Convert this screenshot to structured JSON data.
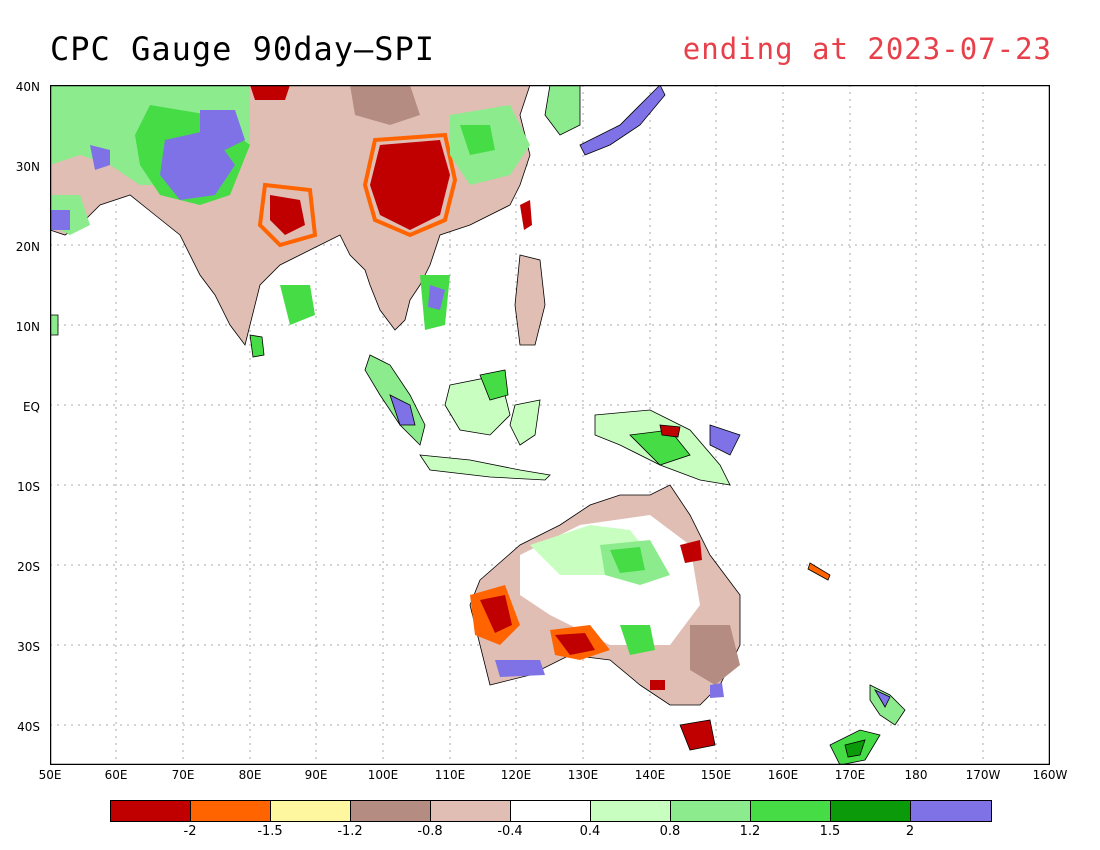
{
  "title": "CPC Gauge 90day—SPI",
  "subtitle": "ending at 2023-07-23",
  "lat_labels": [
    "40N",
    "30N",
    "20N",
    "10N",
    "EQ",
    "10S",
    "20S",
    "30S",
    "40S"
  ],
  "lon_labels": [
    "50E",
    "60E",
    "70E",
    "80E",
    "90E",
    "100E",
    "110E",
    "120E",
    "130E",
    "140E",
    "150E",
    "160E",
    "170E",
    "180",
    "170W",
    "160W"
  ],
  "legend": {
    "colors": [
      "#c00000",
      "#ff6400",
      "#fff6a0",
      "#b48c82",
      "#e0beb4",
      "#ffffff",
      "#c8ffc0",
      "#8ceb8c",
      "#46dc46",
      "#0a9a0a",
      "#7e72e6"
    ],
    "labels": [
      "-2",
      "-1.5",
      "-1.2",
      "-0.8",
      "-0.4",
      "0.4",
      "0.8",
      "1.2",
      "1.5",
      "2"
    ]
  }
}
